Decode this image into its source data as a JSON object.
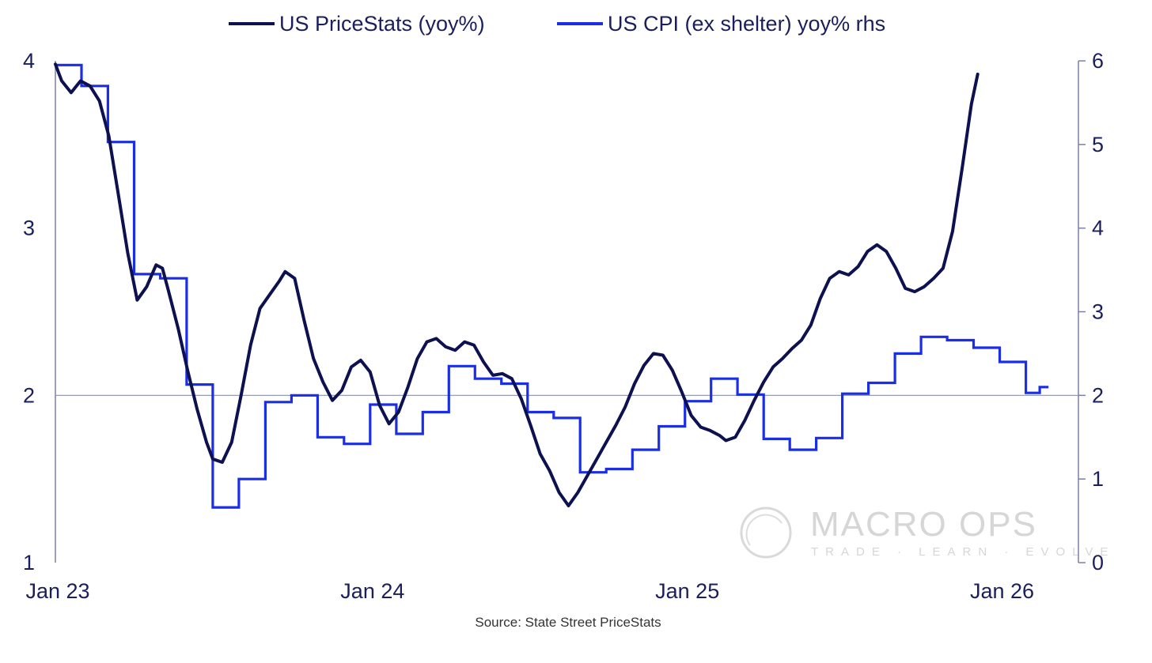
{
  "chart_data": {
    "type": "line",
    "title": "",
    "source": "Source: State Street PriceStats",
    "watermark": {
      "title": "MACRO OPS",
      "subtitle": "TRADE · LEARN · EVOLVE"
    },
    "x_axis": {
      "start": 2023.0,
      "end": 2026.25,
      "ticks": [
        {
          "x": 2023.0,
          "label": "Jan 23"
        },
        {
          "x": 2024.0,
          "label": "Jan 24"
        },
        {
          "x": 2025.0,
          "label": "Jan 25"
        },
        {
          "x": 2026.0,
          "label": "Jan 26"
        }
      ]
    },
    "y_left": {
      "min": 1,
      "max": 4,
      "ticks": [
        1,
        2,
        3,
        4
      ]
    },
    "y_right": {
      "min": 0,
      "max": 6,
      "ticks": [
        0,
        1,
        2,
        3,
        4,
        5,
        6
      ]
    },
    "reference_line": {
      "axis": "left",
      "value": 2
    },
    "colors": {
      "pricestats": "#0d1150",
      "cpi": "#1a2ee8",
      "axis": "#7a7fa8",
      "text": "#1a1f5c"
    },
    "series": [
      {
        "name": "US PriceStats (yoy%)",
        "axis": "left",
        "kind": "line",
        "points": [
          [
            2023.0,
            3.98
          ],
          [
            2023.02,
            3.88
          ],
          [
            2023.05,
            3.81
          ],
          [
            2023.08,
            3.88
          ],
          [
            2023.11,
            3.85
          ],
          [
            2023.14,
            3.76
          ],
          [
            2023.17,
            3.55
          ],
          [
            2023.2,
            3.2
          ],
          [
            2023.23,
            2.85
          ],
          [
            2023.26,
            2.57
          ],
          [
            2023.29,
            2.65
          ],
          [
            2023.32,
            2.78
          ],
          [
            2023.34,
            2.76
          ],
          [
            2023.36,
            2.62
          ],
          [
            2023.39,
            2.4
          ],
          [
            2023.42,
            2.15
          ],
          [
            2023.45,
            1.92
          ],
          [
            2023.48,
            1.72
          ],
          [
            2023.5,
            1.62
          ],
          [
            2023.53,
            1.6
          ],
          [
            2023.56,
            1.72
          ],
          [
            2023.59,
            2.0
          ],
          [
            2023.62,
            2.3
          ],
          [
            2023.65,
            2.52
          ],
          [
            2023.68,
            2.6
          ],
          [
            2023.71,
            2.68
          ],
          [
            2023.73,
            2.74
          ],
          [
            2023.76,
            2.7
          ],
          [
            2023.79,
            2.45
          ],
          [
            2023.82,
            2.22
          ],
          [
            2023.85,
            2.08
          ],
          [
            2023.88,
            1.97
          ],
          [
            2023.91,
            2.03
          ],
          [
            2023.94,
            2.17
          ],
          [
            2023.97,
            2.21
          ],
          [
            2024.0,
            2.14
          ],
          [
            2024.03,
            1.94
          ],
          [
            2024.06,
            1.83
          ],
          [
            2024.09,
            1.9
          ],
          [
            2024.12,
            2.05
          ],
          [
            2024.15,
            2.22
          ],
          [
            2024.18,
            2.32
          ],
          [
            2024.21,
            2.34
          ],
          [
            2024.24,
            2.29
          ],
          [
            2024.27,
            2.27
          ],
          [
            2024.3,
            2.32
          ],
          [
            2024.33,
            2.3
          ],
          [
            2024.36,
            2.2
          ],
          [
            2024.39,
            2.12
          ],
          [
            2024.42,
            2.13
          ],
          [
            2024.45,
            2.1
          ],
          [
            2024.48,
            1.98
          ],
          [
            2024.51,
            1.82
          ],
          [
            2024.54,
            1.65
          ],
          [
            2024.57,
            1.55
          ],
          [
            2024.6,
            1.42
          ],
          [
            2024.63,
            1.34
          ],
          [
            2024.66,
            1.42
          ],
          [
            2024.69,
            1.52
          ],
          [
            2024.72,
            1.62
          ],
          [
            2024.75,
            1.72
          ],
          [
            2024.78,
            1.82
          ],
          [
            2024.81,
            1.93
          ],
          [
            2024.84,
            2.07
          ],
          [
            2024.87,
            2.18
          ],
          [
            2024.9,
            2.25
          ],
          [
            2024.93,
            2.24
          ],
          [
            2024.96,
            2.15
          ],
          [
            2024.99,
            2.02
          ],
          [
            2025.02,
            1.88
          ],
          [
            2025.05,
            1.81
          ],
          [
            2025.08,
            1.79
          ],
          [
            2025.11,
            1.76
          ],
          [
            2025.13,
            1.73
          ],
          [
            2025.16,
            1.75
          ],
          [
            2025.19,
            1.85
          ],
          [
            2025.22,
            1.97
          ],
          [
            2025.25,
            2.08
          ],
          [
            2025.28,
            2.17
          ],
          [
            2025.31,
            2.22
          ],
          [
            2025.34,
            2.28
          ],
          [
            2025.37,
            2.33
          ],
          [
            2025.4,
            2.42
          ],
          [
            2025.43,
            2.58
          ],
          [
            2025.46,
            2.7
          ],
          [
            2025.49,
            2.74
          ],
          [
            2025.52,
            2.72
          ],
          [
            2025.55,
            2.77
          ],
          [
            2025.58,
            2.86
          ],
          [
            2025.61,
            2.9
          ],
          [
            2025.64,
            2.86
          ],
          [
            2025.67,
            2.76
          ],
          [
            2025.7,
            2.64
          ],
          [
            2025.73,
            2.62
          ],
          [
            2025.76,
            2.65
          ],
          [
            2025.79,
            2.7
          ],
          [
            2025.82,
            2.76
          ],
          [
            2025.85,
            2.98
          ],
          [
            2025.88,
            3.35
          ],
          [
            2025.91,
            3.74
          ],
          [
            2025.93,
            3.92
          ]
        ]
      },
      {
        "name": "US CPI (ex shelter) yoy% rhs",
        "axis": "right",
        "kind": "step",
        "points": [
          [
            2023.0,
            5.95
          ],
          [
            2023.083,
            5.7
          ],
          [
            2023.167,
            5.03
          ],
          [
            2023.25,
            3.45
          ],
          [
            2023.333,
            3.4
          ],
          [
            2023.417,
            2.13
          ],
          [
            2023.5,
            0.66
          ],
          [
            2023.583,
            1.0
          ],
          [
            2023.667,
            1.92
          ],
          [
            2023.75,
            2.0
          ],
          [
            2023.833,
            1.5
          ],
          [
            2023.917,
            1.42
          ],
          [
            2024.0,
            1.89
          ],
          [
            2024.083,
            1.54
          ],
          [
            2024.167,
            1.8
          ],
          [
            2024.25,
            2.35
          ],
          [
            2024.333,
            2.2
          ],
          [
            2024.417,
            2.14
          ],
          [
            2024.5,
            1.8
          ],
          [
            2024.583,
            1.73
          ],
          [
            2024.667,
            1.08
          ],
          [
            2024.75,
            1.12
          ],
          [
            2024.833,
            1.35
          ],
          [
            2024.917,
            1.63
          ],
          [
            2025.0,
            1.93
          ],
          [
            2025.083,
            2.2
          ],
          [
            2025.167,
            2.01
          ],
          [
            2025.25,
            1.48
          ],
          [
            2025.333,
            1.35
          ],
          [
            2025.417,
            1.49
          ],
          [
            2025.5,
            2.02
          ],
          [
            2025.583,
            2.15
          ],
          [
            2025.667,
            2.5
          ],
          [
            2025.75,
            2.7
          ],
          [
            2025.833,
            2.66
          ],
          [
            2025.917,
            2.57
          ],
          [
            2026.0,
            2.4
          ],
          [
            2026.083,
            2.03
          ],
          [
            2026.123,
            2.03
          ],
          [
            2026.127,
            2.1
          ],
          [
            2026.155,
            2.1
          ]
        ]
      }
    ]
  }
}
